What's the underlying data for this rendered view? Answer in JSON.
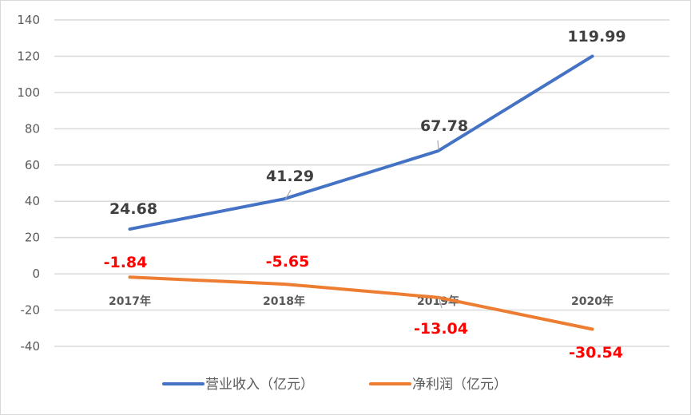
{
  "chart_data": {
    "type": "line",
    "title": "",
    "xlabel": "",
    "ylabel": "",
    "categories": [
      "2017年",
      "2018年",
      "2019年",
      "2020年"
    ],
    "series": [
      {
        "name": "营业收入（亿元）",
        "color": "#4472c4",
        "values": [
          24.68,
          41.29,
          67.78,
          119.99
        ],
        "label_color": "#404040"
      },
      {
        "name": "净利润（亿元）",
        "color": "#ed7d31",
        "values": [
          -1.84,
          -5.65,
          -13.04,
          -30.54
        ],
        "label_color": "#ff0000"
      }
    ],
    "ylim": [
      -40,
      140
    ],
    "yticks": [
      140,
      120,
      100,
      80,
      60,
      40,
      20,
      0,
      -20,
      -40
    ],
    "grid": true,
    "legend_position": "bottom"
  },
  "labels": {
    "revenue": [
      "24.68",
      "41.29",
      "67.78",
      "119.99"
    ],
    "net_profit": [
      "-1.84",
      "-5.65",
      "-13.04",
      "-30.54"
    ]
  },
  "legend": {
    "revenue": "营业收入（亿元）",
    "net_profit": "净利润（亿元）"
  }
}
